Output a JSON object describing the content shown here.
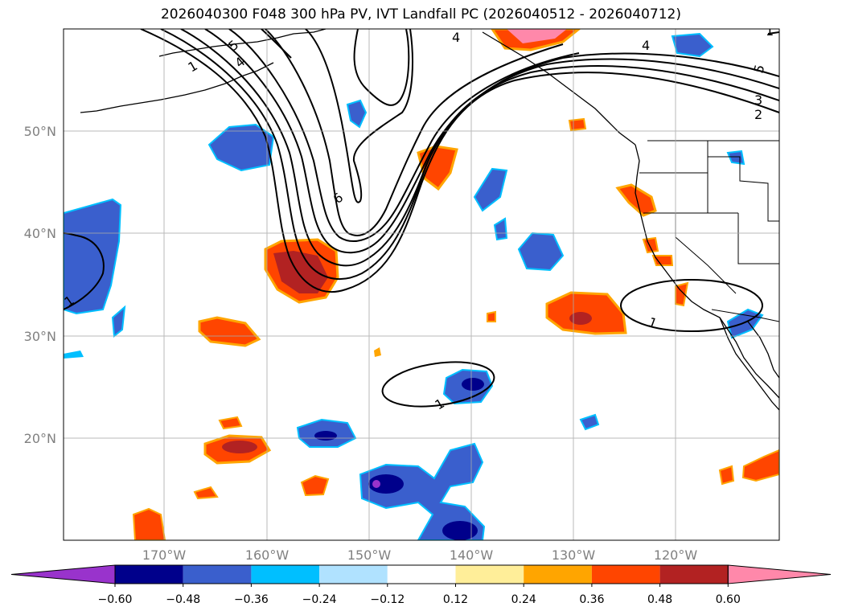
{
  "title": "2026040300 F048 300 hPa PV, IVT Landfall PC (2026040512 - 2026040712)",
  "lat_labels": [
    "50°N",
    "40°N",
    "30°N",
    "20°N"
  ],
  "lon_labels": [
    "170°W",
    "160°W",
    "150°W",
    "140°W",
    "130°W",
    "120°W"
  ],
  "colorbar": {
    "ticks": [
      "−0.60",
      "−0.48",
      "−0.36",
      "−0.24",
      "−0.12",
      "0.12",
      "0.24",
      "0.36",
      "0.48",
      "0.60"
    ],
    "colors": [
      "#9933cc",
      "#00008b",
      "#3a5fcd",
      "#00bfff",
      "#b0e2ff",
      "#ffffff",
      "#ffee99",
      "#ffa500",
      "#ff4500",
      "#b22222",
      "#ff88aa"
    ]
  },
  "contour_labels": [
    "1",
    "5",
    "4",
    "6",
    "1",
    "4",
    "4",
    "5",
    "3",
    "2",
    "1",
    "1",
    "1"
  ],
  "colors": {
    "neg_mid": "#3a5fcd",
    "neg_dark": "#00008b",
    "neg_light": "#00bfff",
    "pos_mid": "#ff4500",
    "pos_dark": "#b22222",
    "pos_light": "#ffee99",
    "pos_pink": "#ff88aa"
  }
}
